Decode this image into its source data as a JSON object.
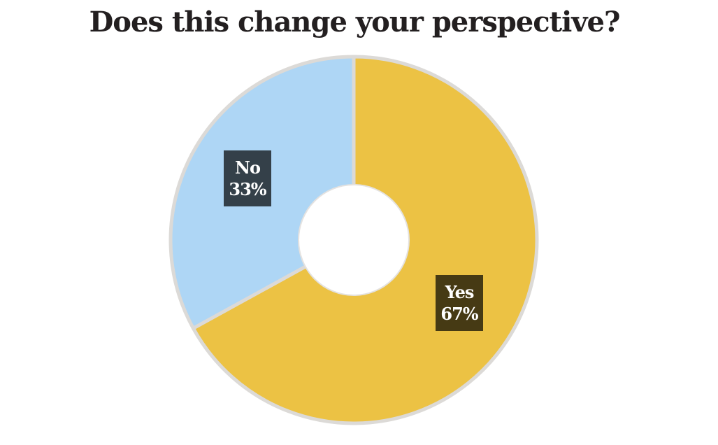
{
  "page": {
    "background_color": "#ffffff"
  },
  "chart_data": {
    "type": "pie",
    "subtype": "donut",
    "title": "Does this change your perspective?",
    "categories": [
      "Yes",
      "No"
    ],
    "values": [
      67,
      33
    ],
    "slices": [
      {
        "label": "Yes",
        "value": 67,
        "value_label": "67%",
        "color": "#ecc244"
      },
      {
        "label": "No",
        "value": 33,
        "value_label": "33%",
        "color": "#aed6f5"
      }
    ],
    "start_angle_deg": 0,
    "direction": "clockwise",
    "inner_radius_ratio": 0.3,
    "outline_color": "#dcdad7",
    "hole_color": "#ffffff",
    "hole_outline_color": "#e4e2e0",
    "label_box_color": "rgba(0,0,0,0.7)",
    "label_text_color": "#ffffff",
    "title_color": "#231f20",
    "legend": "none",
    "grid": "off"
  }
}
